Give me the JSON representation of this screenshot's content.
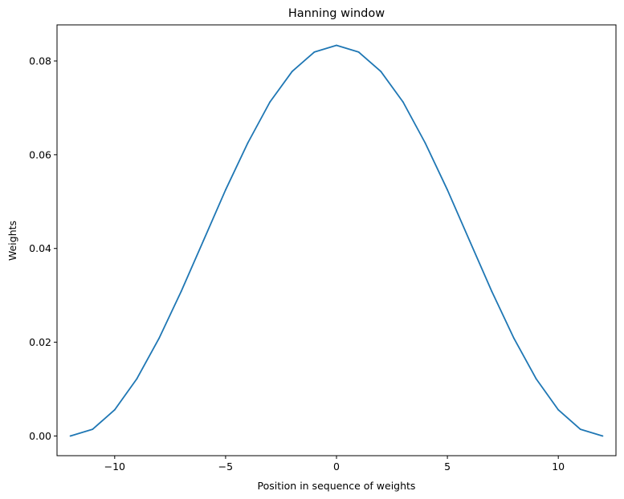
{
  "chart_data": {
    "type": "line",
    "title": "Hanning window",
    "xlabel": "Position in sequence of weights",
    "ylabel": "Weights",
    "xlim": [
      -12.6,
      12.6
    ],
    "ylim": [
      -0.0042,
      0.0877
    ],
    "xticks": [
      -10,
      -5,
      0,
      5,
      10
    ],
    "xtick_labels": [
      "−10",
      "−5",
      "0",
      "5",
      "10"
    ],
    "yticks": [
      0.0,
      0.02,
      0.04,
      0.06,
      0.08
    ],
    "ytick_labels": [
      "0.00",
      "0.02",
      "0.04",
      "0.06",
      "0.08"
    ],
    "grid": false,
    "series": [
      {
        "color": "#1f77b4",
        "x": [
          -12,
          -11,
          -10,
          -9,
          -8,
          -7,
          -6,
          -5,
          -4,
          -3,
          -2,
          -1,
          0,
          1,
          2,
          3,
          4,
          5,
          6,
          7,
          8,
          9,
          10,
          11,
          12
        ],
        "y": [
          0.0,
          0.00142,
          0.00558,
          0.01221,
          0.02083,
          0.03087,
          0.04167,
          0.0525,
          0.0625,
          0.07125,
          0.07776,
          0.0819,
          0.08333,
          0.0819,
          0.07776,
          0.07125,
          0.0625,
          0.0525,
          0.04167,
          0.03087,
          0.02083,
          0.01221,
          0.00558,
          0.00142,
          0.0
        ]
      }
    ]
  }
}
